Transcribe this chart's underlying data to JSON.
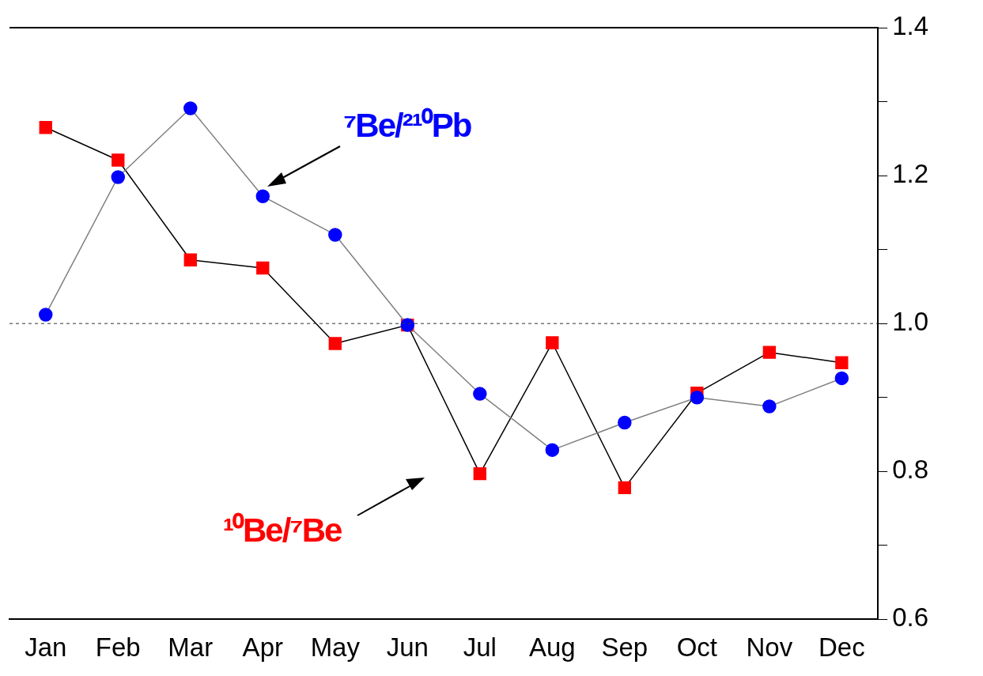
{
  "chart_data": {
    "type": "line",
    "categories": [
      "Jan",
      "Feb",
      "Mar",
      "Apr",
      "May",
      "Jun",
      "Jul",
      "Aug",
      "Sep",
      "Oct",
      "Nov",
      "Dec"
    ],
    "series": [
      {
        "name": "¹⁰Be/⁷Be",
        "color": "#ff0000",
        "marker": "square",
        "values": [
          1.265,
          1.221,
          1.086,
          1.075,
          0.973,
          0.998,
          0.797,
          0.974,
          0.778,
          0.906,
          0.961,
          0.947
        ]
      },
      {
        "name": "⁷Be/²¹⁰Pb",
        "color": "#0000ff",
        "marker": "circle",
        "values": [
          1.012,
          1.198,
          1.291,
          1.172,
          1.12,
          0.998,
          0.905,
          0.829,
          0.866,
          0.9,
          0.888,
          0.926
        ]
      }
    ],
    "ylim": [
      0.6,
      1.4
    ],
    "yticks": [
      0.6,
      {
        "value": 0.7,
        "label": null
      },
      0.8,
      {
        "value": 0.9,
        "label": null
      },
      {
        "value": 1.0,
        "label": "1.0"
      },
      {
        "value": 1.1,
        "label": null
      },
      1.2,
      {
        "value": 1.3,
        "label": null
      },
      1.4
    ],
    "ref_lines": [
      {
        "axis": "y",
        "value": 1.0,
        "line_style": "dashed"
      }
    ],
    "grid": false,
    "legend": false,
    "line_style": "solid"
  }
}
